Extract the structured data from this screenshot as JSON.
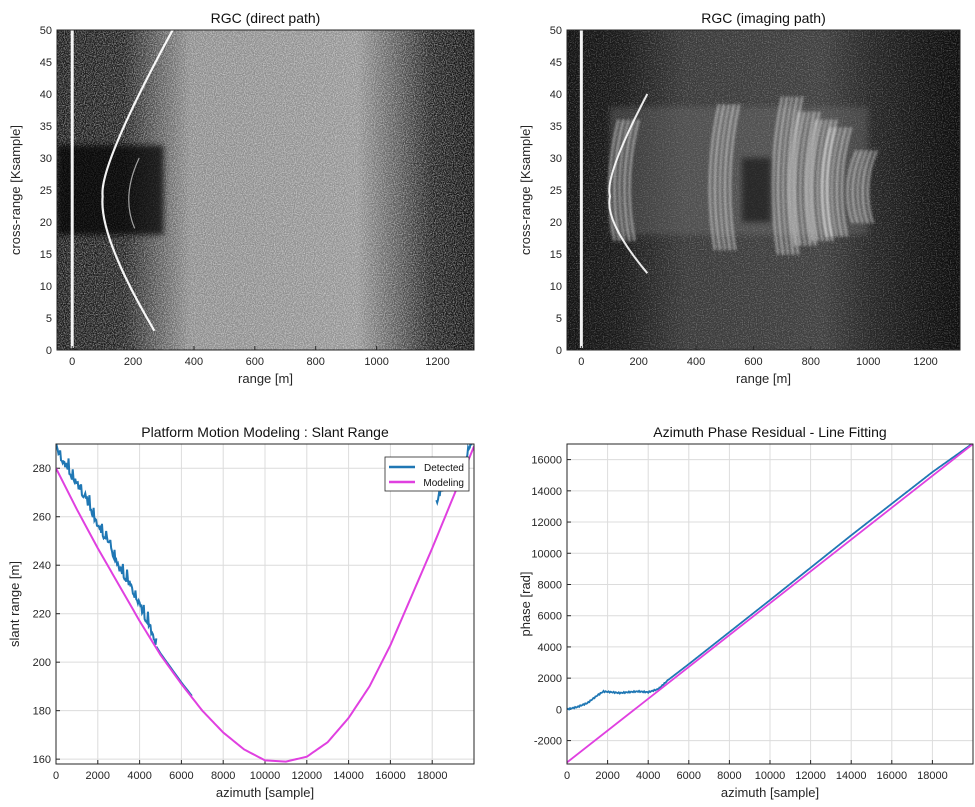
{
  "chart_data": [
    {
      "type": "heatmap",
      "title": "RGC (direct path)",
      "xlabel": "range [m]",
      "ylabel": "cross-range [Ksample]",
      "xlim": [
        -50,
        1320
      ],
      "ylim": [
        0,
        50
      ],
      "xticks": [
        0,
        200,
        400,
        600,
        800,
        1000,
        1200
      ],
      "yticks": [
        0,
        5,
        10,
        15,
        20,
        25,
        30,
        35,
        40,
        45,
        50
      ],
      "colormap": "gray",
      "features": {
        "vertical_line_range": 0,
        "hyperbola_apex": {
          "range": 100,
          "cross_range": 24
        },
        "hyperbola_ends": [
          {
            "range": 330,
            "cross_range": 50
          },
          {
            "range": 270,
            "cross_range": 3
          }
        ],
        "dark_band_cross_range": [
          18,
          32
        ],
        "clutter_range": [
          300,
          1100
        ]
      }
    },
    {
      "type": "heatmap",
      "title": "RGC (imaging path)",
      "xlabel": "range [m]",
      "ylabel": "cross-range [Ksample]",
      "xlim": [
        -50,
        1320
      ],
      "ylim": [
        0,
        50
      ],
      "xticks": [
        0,
        200,
        400,
        600,
        800,
        1000,
        1200
      ],
      "yticks": [
        0,
        5,
        10,
        15,
        20,
        25,
        30,
        35,
        40,
        45,
        50
      ],
      "colormap": "gray",
      "features": {
        "vertical_line_range": 0,
        "hyperbola_apex": {
          "range": 100,
          "cross_range": 24
        },
        "bright_targets_range": [
          130,
          480,
          700,
          760,
          820,
          870,
          960
        ],
        "bright_band_cross_range": [
          18,
          38
        ]
      }
    },
    {
      "type": "line",
      "title": "Platform Motion Modeling : Slant Range",
      "xlabel": "azimuth [sample]",
      "ylabel": "slant range [m]",
      "xlim": [
        0,
        20000
      ],
      "ylim": [
        158,
        290
      ],
      "xticks": [
        0,
        2000,
        4000,
        6000,
        8000,
        10000,
        12000,
        14000,
        16000,
        18000
      ],
      "yticks": [
        160,
        180,
        200,
        220,
        240,
        260,
        280
      ],
      "grid": true,
      "legend": "top-right",
      "series": [
        {
          "name": "Detected",
          "color": "#1f77b4",
          "x": [
            0,
            500,
            1000,
            1500,
            2000,
            2500,
            3000,
            3500,
            4000,
            4500,
            4800,
            6500,
            18200,
            18600,
            19000,
            19500,
            19900
          ],
          "y": [
            287,
            279,
            272,
            265,
            255,
            248,
            238,
            231,
            222,
            213,
            206,
            175,
            265,
            272,
            271,
            280,
            289
          ]
        },
        {
          "name": "Modeling",
          "color": "#e040e0",
          "x": [
            0,
            1000,
            2000,
            3000,
            4000,
            5000,
            6000,
            7000,
            8000,
            9000,
            10000,
            11000,
            12000,
            13000,
            14000,
            15000,
            16000,
            17000,
            18000,
            19000,
            20000
          ],
          "y": [
            280,
            263,
            247,
            232,
            217,
            203,
            191,
            180,
            171,
            164,
            159.5,
            159,
            161,
            167,
            177,
            190,
            207,
            227,
            247,
            268,
            289
          ]
        }
      ]
    },
    {
      "type": "line",
      "title": "Azimuth Phase Residual - Line Fitting",
      "xlabel": "azimuth [sample]",
      "ylabel": "phase [rad]",
      "xlim": [
        0,
        20000
      ],
      "ylim": [
        -3500,
        17000
      ],
      "xticks": [
        0,
        2000,
        4000,
        6000,
        8000,
        10000,
        12000,
        14000,
        16000,
        18000
      ],
      "yticks": [
        -2000,
        0,
        2000,
        4000,
        6000,
        8000,
        10000,
        12000,
        14000,
        16000
      ],
      "grid": true,
      "series": [
        {
          "color": "#1f77b4",
          "x": [
            0,
            500,
            1000,
            1500,
            1800,
            2200,
            2600,
            3000,
            3500,
            4000,
            4500,
            5000,
            6000,
            10000,
            14000,
            18000,
            20000
          ],
          "y": [
            0,
            150,
            400,
            900,
            1150,
            1100,
            1050,
            1100,
            1150,
            1100,
            1300,
            1900,
            2900,
            7000,
            11150,
            15200,
            17050
          ]
        },
        {
          "color": "#e040e0",
          "x": [
            0,
            20000
          ],
          "y": [
            -3400,
            17000
          ]
        }
      ]
    }
  ]
}
